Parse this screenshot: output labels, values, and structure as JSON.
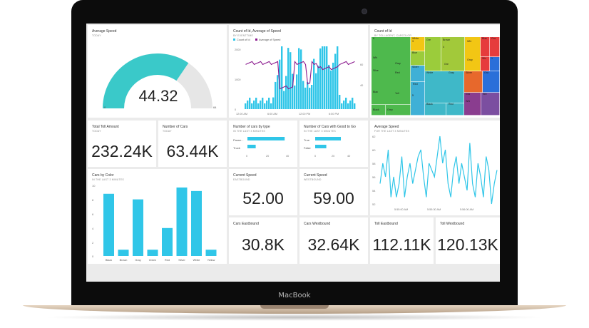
{
  "device": {
    "label": "MacBook"
  },
  "colors": {
    "accent": "#30c6e8",
    "teal": "#3ac9c9",
    "purple": "#8b1a8e"
  },
  "tiles": {
    "gauge": {
      "title": "Average Speed",
      "subtitle": "TODAY",
      "value": "44.32",
      "min": "0",
      "max": "64",
      "fraction": 0.69
    },
    "combo": {
      "title": "Count of Id, Average of Speed",
      "subtitle": "BY EVENTTIME",
      "legend": [
        "Count of Id",
        "Average of Speed"
      ],
      "y_left": [
        "2000",
        "1000",
        "0"
      ],
      "y_right": [
        "60",
        "40"
      ],
      "x_labels": [
        "12:00 AM",
        "6:00 AM",
        "12:00 PM",
        "6:00 PM"
      ]
    },
    "treemap": {
      "title": "Count of Id",
      "subtitle": "BY TOLLAGENT, CARCOLOR",
      "labels": [
        "6",
        "Whi",
        "Silve",
        "Blac",
        "Gray",
        "Red",
        "Yell",
        "White",
        "Blue",
        "Silver",
        "Gre",
        "Brown",
        "Black",
        "Red",
        "Grey",
        "White",
        "Gray",
        "Black",
        "Red",
        "Silver",
        "Gra",
        "3",
        "4",
        "Whi",
        "Blac",
        "Silv",
        "Gra",
        "1",
        "Gra",
        "Silv",
        "Whi",
        "5",
        "Gray",
        "Gre"
      ]
    },
    "total_toll": {
      "title": "Total Toll Amount",
      "subtitle": "TODAY",
      "value": "232.24K"
    },
    "num_cars": {
      "title": "Number of Cars",
      "subtitle": "TODAY",
      "value": "63.44K"
    },
    "by_type": {
      "title": "Number of cars by type",
      "subtitle": "IN THE LAST 3 MINUTES",
      "categories": [
        "Passe...",
        "Truck"
      ],
      "values": [
        36,
        8
      ],
      "ticks": [
        "0",
        "20",
        "40"
      ]
    },
    "good_to_go": {
      "title": "Number of Cars with Good to Go",
      "subtitle": "IN THE LAST 3 MINUTES",
      "categories": [
        "True",
        "False"
      ],
      "values": [
        30,
        13
      ],
      "ticks": [
        "0",
        "20",
        "40"
      ]
    },
    "avg_speed_line": {
      "title": "Average Speed",
      "subtitle": "FOR THE LAST 3 MINUTES",
      "y_ticks": [
        "62",
        "60",
        "58",
        "56",
        "54",
        "52"
      ],
      "x_labels": [
        "5:55:00 AM",
        "5:55:30 AM",
        "5:56:00 AM"
      ],
      "values": [
        55,
        58,
        56,
        60,
        53,
        56,
        53,
        55,
        59,
        53,
        56,
        58,
        55,
        57,
        59,
        60,
        56,
        53,
        58,
        57,
        56,
        59,
        62,
        58,
        60,
        55,
        53,
        57,
        59,
        55,
        58,
        56,
        54,
        61,
        55,
        53,
        58,
        56,
        53,
        59,
        57,
        52,
        55,
        57
      ]
    },
    "by_color": {
      "title": "Cars by Color",
      "subtitle": "IN THE LAST 3 MINUTES",
      "y_ticks": [
        "10",
        "8",
        "6",
        "4",
        "2",
        "0"
      ],
      "categories": [
        "Black",
        "Brown",
        "Gray",
        "Green",
        "Red",
        "Silver",
        "White",
        "Yellow"
      ],
      "values": [
        8.9,
        0.9,
        8.1,
        0.9,
        4.0,
        9.8,
        9.3,
        0.9
      ]
    },
    "speed_east": {
      "title": "Current Speed",
      "subtitle": "EASTBOUND",
      "value": "52.00"
    },
    "speed_west": {
      "title": "Current Speed",
      "subtitle": "WESTBOUND",
      "value": "59.00"
    },
    "cars_east": {
      "title": "Cars Eastbound",
      "value": "30.8K"
    },
    "cars_west": {
      "title": "Cars Westbound",
      "value": "32.64K"
    },
    "toll_east": {
      "title": "Toll Eastbound",
      "value": "112.11K"
    },
    "toll_west": {
      "title": "Toll Westbound",
      "value": "120.13K"
    }
  }
}
